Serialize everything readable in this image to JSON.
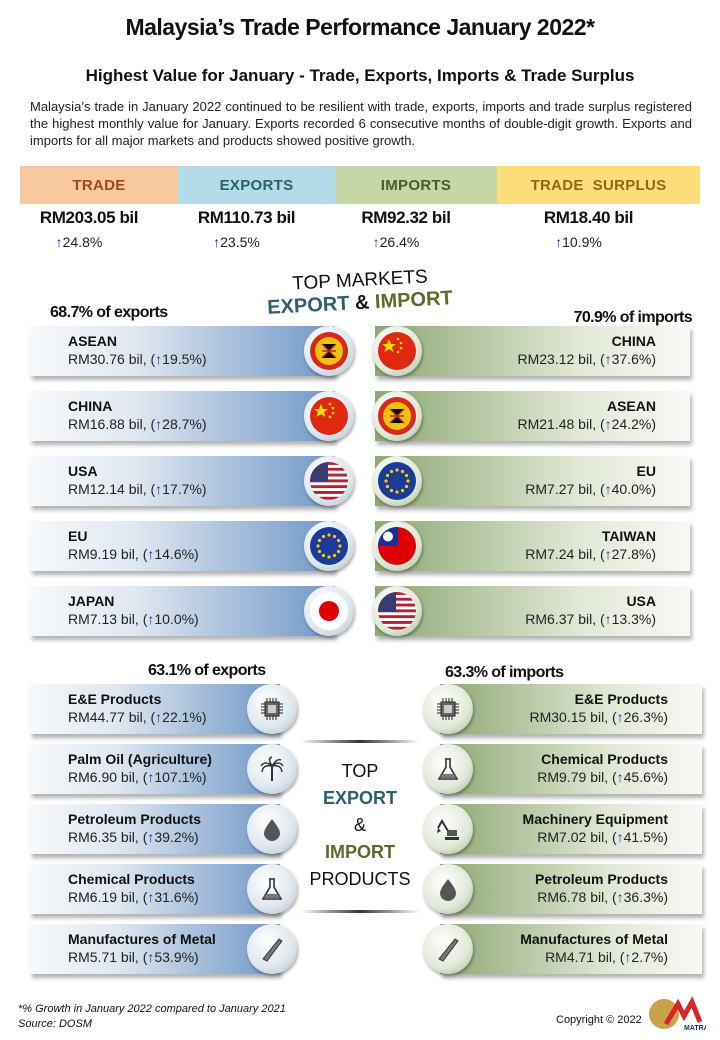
{
  "title": "Malaysia’s Trade Performance January 2022*",
  "subtitle": "Highest Value for January - Trade, Exports, Imports & Trade Surplus",
  "intro": "Malaysia’s trade in January 2022 continued to be resilient with trade, exports, imports and trade surplus registered the highest monthly value for January. Exports recorded 6 consecutive months of double-digit growth. Exports and imports for all major markets and products showed positive growth.",
  "arrow": "↑",
  "summary": [
    {
      "label": "TRADE",
      "value": "RM203.05 bil",
      "growth": "24.8%",
      "bg": "#f8c8a0",
      "fg": "#9a4a16"
    },
    {
      "label": "EXPORTS",
      "value": "RM110.73 bil",
      "growth": "23.5%",
      "bg": "#b3dbe8",
      "fg": "#2a5f6e"
    },
    {
      "label": "IMPORTS",
      "value": "RM92.32 bil",
      "growth": "26.4%",
      "bg": "#c5d7a7",
      "fg": "#4a5a2e"
    },
    {
      "label": "TRADE  SURPLUS",
      "value": "RM18.40 bil",
      "growth": "10.9%",
      "bg": "#fbdd7c",
      "fg": "#8a6a12"
    }
  ],
  "markets": {
    "heading_top": "TOP MARKETS",
    "heading_export": "EXPORT",
    "heading_amp": "&",
    "heading_import": "IMPORT",
    "export_share": "68.7% of exports",
    "import_share": "70.9% of imports",
    "exports": [
      {
        "name": "ASEAN",
        "value": "RM30.76 bil, (",
        "growth": "19.5%)",
        "flag": "asean"
      },
      {
        "name": "CHINA",
        "value": "RM16.88 bil, (",
        "growth": "28.7%)",
        "flag": "china"
      },
      {
        "name": "USA",
        "value": "RM12.14 bil, (",
        "growth": "17.7%)",
        "flag": "usa"
      },
      {
        "name": "EU",
        "value": "RM9.19 bil, (",
        "growth": "14.6%)",
        "flag": "eu"
      },
      {
        "name": "JAPAN",
        "value": "RM7.13 bil, (",
        "growth": "10.0%)",
        "flag": "japan"
      }
    ],
    "imports": [
      {
        "name": "CHINA",
        "value": "RM23.12 bil, (",
        "growth": "37.6%)",
        "flag": "china"
      },
      {
        "name": "ASEAN",
        "value": "RM21.48 bil, (",
        "growth": "24.2%)",
        "flag": "asean"
      },
      {
        "name": "EU",
        "value": "RM7.27 bil, (",
        "growth": "40.0%)",
        "flag": "eu"
      },
      {
        "name": "TAIWAN",
        "value": "RM7.24 bil, (",
        "growth": "27.8%)",
        "flag": "taiwan"
      },
      {
        "name": "USA",
        "value": "RM6.37 bil, (",
        "growth": "13.3%)",
        "flag": "usa"
      }
    ]
  },
  "products": {
    "export_share": "63.1% of exports",
    "import_share": "63.3% of imports",
    "center_top": "TOP",
    "center_export": "EXPORT",
    "center_amp": "&",
    "center_import": "IMPORT",
    "center_products": "PRODUCTS",
    "exports": [
      {
        "name": "E&E Products",
        "value": "RM44.77 bil, (",
        "growth": "22.1%)",
        "icon": "chip"
      },
      {
        "name": "Palm Oil (Agriculture)",
        "value": "RM6.90 bil, (",
        "growth": "107.1%)",
        "icon": "palm"
      },
      {
        "name": "Petroleum Products",
        "value": "RM6.35 bil, (",
        "growth": "39.2%)",
        "icon": "drop"
      },
      {
        "name": "Chemical Products",
        "value": "RM6.19 bil, (",
        "growth": "31.6%)",
        "icon": "flask"
      },
      {
        "name": "Manufactures of Metal",
        "value": "RM5.71 bil, (",
        "growth": "53.9%)",
        "icon": "metal"
      }
    ],
    "imports": [
      {
        "name": "E&E Products",
        "value": "RM30.15 bil, (",
        "growth": "26.3%)",
        "icon": "chip"
      },
      {
        "name": "Chemical Products",
        "value": "RM9.79 bil, (",
        "growth": "45.6%)",
        "icon": "flask"
      },
      {
        "name": "Machinery Equipment",
        "value": "RM7.02 bil, (",
        "growth": "41.5%)",
        "icon": "excavator"
      },
      {
        "name": "Petroleum Products",
        "value": "RM6.78 bil, (",
        "growth": "36.3%)",
        "icon": "drop"
      },
      {
        "name": "Manufactures of Metal",
        "value": "RM4.71 bil, (",
        "growth": "2.7%)",
        "icon": "metal"
      }
    ]
  },
  "footnote": "*% Growth  in January 2022 compared to January 2021",
  "source": "Source: DOSM",
  "copyright": "Copyright © 2022",
  "logo_text": "MATRADE",
  "colors": {
    "export": "#2f5f6e",
    "import": "#5a6b2e",
    "arrow": "#1a2fb3"
  }
}
